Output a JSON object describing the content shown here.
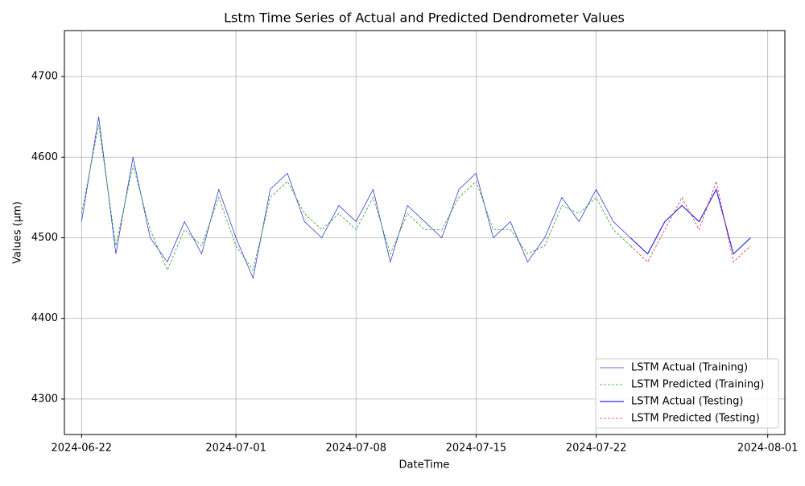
{
  "chart_data": {
    "type": "line",
    "title": "Lstm Time Series of Actual and Predicted Dendrometer Values",
    "x_label": "DateTime",
    "y_label": "Values (µm)",
    "x": [
      "2024-06-22",
      "2024-06-23",
      "2024-06-24",
      "2024-06-25",
      "2024-06-26",
      "2024-06-27",
      "2024-06-28",
      "2024-06-29",
      "2024-06-30",
      "2024-07-01",
      "2024-07-02",
      "2024-07-03",
      "2024-07-04",
      "2024-07-05",
      "2024-07-06",
      "2024-07-07",
      "2024-07-08",
      "2024-07-09",
      "2024-07-10",
      "2024-07-11",
      "2024-07-12",
      "2024-07-13",
      "2024-07-14",
      "2024-07-15",
      "2024-07-16",
      "2024-07-17",
      "2024-07-18",
      "2024-07-19",
      "2024-07-20",
      "2024-07-21",
      "2024-07-22",
      "2024-07-23",
      "2024-07-24",
      "2024-07-25",
      "2024-07-26",
      "2024-07-27",
      "2024-07-28",
      "2024-07-29",
      "2024-07-30",
      "2024-07-31"
    ],
    "series": [
      {
        "name": "LSTM Actual (Training)",
        "color": "#3b3bd6",
        "dash": "solid",
        "width": 0.8,
        "values": [
          4520,
          4650,
          4480,
          4600,
          4500,
          4470,
          4520,
          4480,
          4560,
          4500,
          4450,
          4560,
          4580,
          4520,
          4500,
          4540,
          4520,
          4560,
          4470,
          4540,
          4520,
          4500,
          4560,
          4580,
          4500,
          4520,
          4470,
          4500,
          4550,
          4520,
          4560,
          4520,
          4500,
          null,
          null,
          null,
          null,
          null,
          null,
          null
        ]
      },
      {
        "name": "LSTM Predicted (Training)",
        "color": "#2ca02c",
        "dash": "dashed",
        "width": 0.8,
        "values": [
          4530,
          4640,
          4490,
          4590,
          4510,
          4460,
          4510,
          4490,
          4550,
          4490,
          4460,
          4550,
          4570,
          4530,
          4510,
          4530,
          4510,
          4550,
          4480,
          4530,
          4510,
          4510,
          4550,
          4570,
          4510,
          4510,
          4480,
          4490,
          4540,
          4530,
          4550,
          4510,
          4490,
          null,
          null,
          null,
          null,
          null,
          null,
          null
        ]
      },
      {
        "name": "LSTM Actual (Testing)",
        "color": "#2f2fe0",
        "dash": "solid",
        "width": 1.2,
        "values": [
          null,
          null,
          null,
          null,
          null,
          null,
          null,
          null,
          null,
          null,
          null,
          null,
          null,
          null,
          null,
          null,
          null,
          null,
          null,
          null,
          null,
          null,
          null,
          null,
          null,
          null,
          null,
          null,
          null,
          null,
          null,
          null,
          4500,
          4480,
          4520,
          4540,
          4520,
          4560,
          4480,
          4500
        ]
      },
      {
        "name": "LSTM Predicted (Testing)",
        "color": "#e03030",
        "dash": "dashed",
        "width": 0.8,
        "values": [
          null,
          null,
          null,
          null,
          null,
          null,
          null,
          null,
          null,
          null,
          null,
          null,
          null,
          null,
          null,
          null,
          null,
          null,
          null,
          null,
          null,
          null,
          null,
          null,
          null,
          null,
          null,
          null,
          null,
          null,
          null,
          null,
          4490,
          4470,
          4510,
          4550,
          4510,
          4570,
          4470,
          4490
        ]
      }
    ],
    "xlim": [
      "2024-06-21",
      "2024-08-02"
    ],
    "xticks": [
      "2024-06-22",
      "2024-07-01",
      "2024-07-08",
      "2024-07-15",
      "2024-07-22",
      "2024-08-01"
    ],
    "ylim": [
      4256,
      4757
    ],
    "yticks": [
      4300,
      4400,
      4500,
      4600,
      4700
    ],
    "grid": true,
    "legend": "lower right"
  }
}
